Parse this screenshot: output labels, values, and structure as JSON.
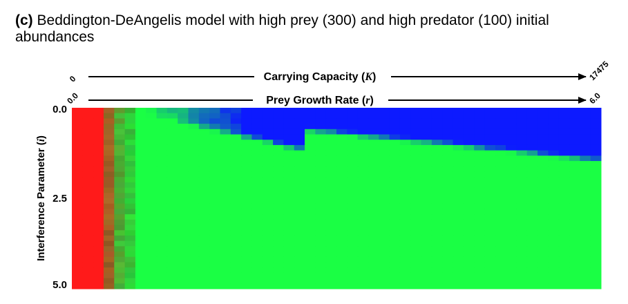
{
  "title": {
    "label": "(c)",
    "text": "Beddington-DeAngelis model with high prey (300) and high predator (100) initial abundances"
  },
  "chart_data": {
    "type": "heatmap",
    "title": "Beddington-DeAngelis model with high prey (300) and high predator (100) initial abundances",
    "top_axes": [
      {
        "label_pre": "Carrying Capacity (",
        "label_var": "K",
        "label_post": ")",
        "range": [
          0,
          17475
        ],
        "tick_min": "0",
        "tick_max": "17475"
      },
      {
        "label_pre": "Prey Growth Rate (",
        "label_var": "r",
        "label_post": ")",
        "range": [
          0.0,
          6.0
        ],
        "tick_min": "0.0",
        "tick_max": "6.0"
      }
    ],
    "y_axis": {
      "label_pre": "Interference Parameter (",
      "label_var": "i",
      "label_post": ")",
      "range": [
        0.0,
        5.0
      ],
      "ticks": [
        {
          "value": 0.0,
          "label": "0.0"
        },
        {
          "value": 2.5,
          "label": "2.5"
        },
        {
          "value": 5.0,
          "label": "5.0"
        }
      ]
    },
    "colors": {
      "prey_extinct": "#ff1a1a",
      "coexistence": "#1aff44",
      "predator_dominant": "#0d1aff"
    },
    "regions": [
      {
        "name": "red",
        "description_x_max": 0.45,
        "color": "#ff1a1a"
      },
      {
        "name": "blue",
        "x_start": 2.0,
        "i_max_left": 0.5,
        "i_max_right": 1.5,
        "color": "#0d1aff"
      },
      {
        "name": "green",
        "color": "#1aff44"
      }
    ]
  }
}
